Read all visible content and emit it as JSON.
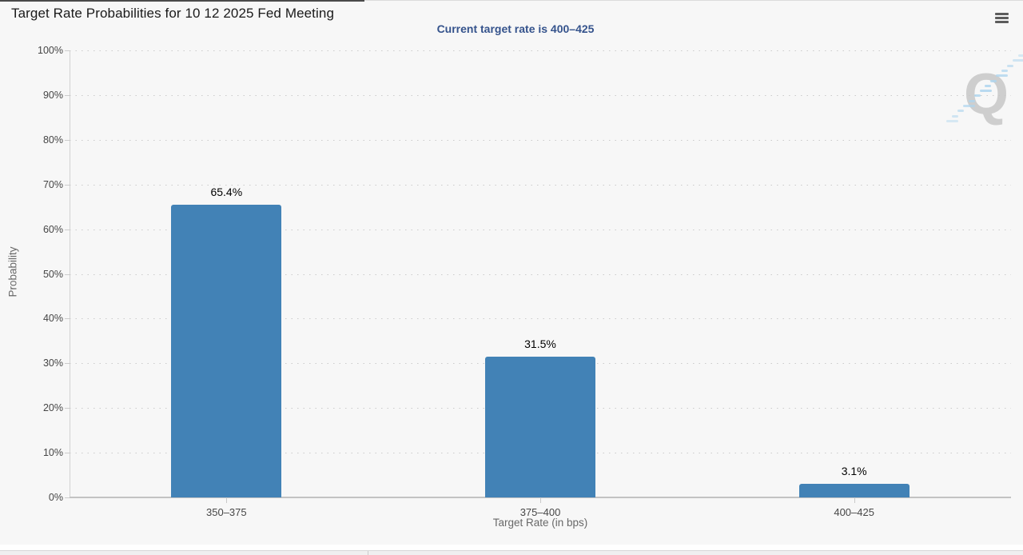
{
  "header": {
    "title": "Target Rate Probabilities for 10 12 2025 Fed Meeting",
    "export_menu_icon": "hamburger-icon"
  },
  "chart_data": {
    "type": "bar",
    "title": "Target Rate Probabilities for 10 12 2025 Fed Meeting",
    "subtitle": "Current target rate is 400–425",
    "categories": [
      "350–375",
      "375–400",
      "400–425"
    ],
    "values": [
      65.4,
      31.5,
      3.1
    ],
    "value_labels": [
      "65.4%",
      "31.5%",
      "3.1%"
    ],
    "xlabel": "Target Rate (in bps)",
    "ylabel": "Probability",
    "ylim": [
      0,
      100
    ],
    "ytick_step": 10,
    "ytick_labels": [
      "0%",
      "10%",
      "20%",
      "30%",
      "40%",
      "50%",
      "60%",
      "70%",
      "80%",
      "90%",
      "100%"
    ],
    "grid": "dotted horizontal gridlines, light gray",
    "legend": "none",
    "bar_color": "#4282b6",
    "plot_background": "#f7f7f7",
    "subtitle_color": "#35538c",
    "watermark_letter": "Q"
  }
}
